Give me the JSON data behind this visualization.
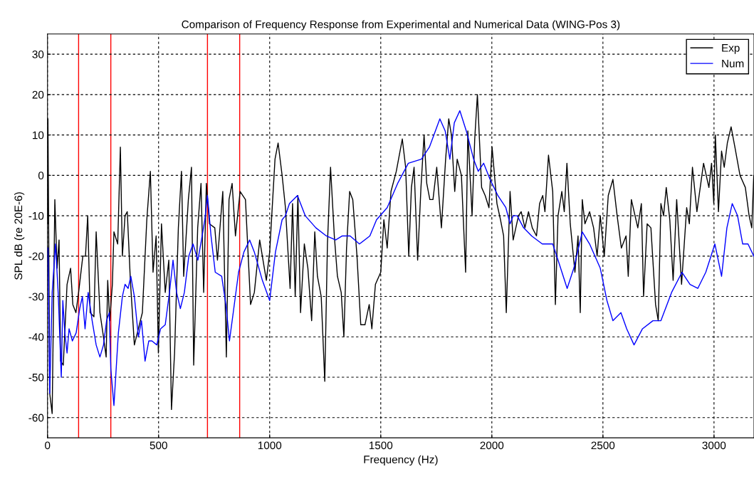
{
  "chart_data": {
    "type": "line",
    "title": "Comparison of Frequency Response from Experimental and Numerical Data (WING-Pos 3)",
    "xlabel": "Frequency (Hz)",
    "ylabel": "SPL dB (re 20E-6)",
    "xlim": [
      0,
      3180
    ],
    "ylim": [
      -65,
      35
    ],
    "xticks": [
      0,
      500,
      1000,
      1500,
      2000,
      2500,
      3000
    ],
    "yticks": [
      -60,
      -50,
      -40,
      -30,
      -20,
      -10,
      0,
      10,
      20,
      30
    ],
    "grid": true,
    "legend": "top right",
    "ref_lines": [
      {
        "axis": "x",
        "value": 140,
        "color": "#ff0000"
      },
      {
        "axis": "x",
        "value": 285,
        "color": "#ff0000"
      },
      {
        "axis": "x",
        "value": 720,
        "color": "#ff0000"
      },
      {
        "axis": "x",
        "value": 865,
        "color": "#ff0000"
      }
    ],
    "series": [
      {
        "name": "Exp",
        "color": "#000000",
        "x": [
          0,
          2,
          10,
          21,
          33,
          43,
          52,
          59,
          71,
          88,
          104,
          114,
          128,
          140,
          159,
          171,
          181,
          192,
          209,
          219,
          236,
          252,
          264,
          271,
          280,
          292,
          299,
          316,
          328,
          337,
          349,
          359,
          373,
          391,
          409,
          427,
          447,
          463,
          475,
          489,
          499,
          513,
          530,
          546,
          558,
          572,
          589,
          603,
          613,
          634,
          648,
          658,
          676,
          691,
          703,
          715,
          729,
          753,
          765,
          789,
          805,
          817,
          831,
          846,
          867,
          891,
          914,
          931,
          955,
          985,
          1000,
          1024,
          1038,
          1056,
          1071,
          1092,
          1103,
          1115,
          1127,
          1139,
          1156,
          1172,
          1189,
          1203,
          1215,
          1232,
          1248,
          1260,
          1274,
          1291,
          1305,
          1322,
          1334,
          1346,
          1360,
          1374,
          1393,
          1410,
          1429,
          1448,
          1460,
          1476,
          1500,
          1514,
          1529,
          1546,
          1570,
          1597,
          1612,
          1626,
          1638,
          1650,
          1666,
          1681,
          1695,
          1707,
          1721,
          1735,
          1752,
          1773,
          1792,
          1806,
          1818,
          1833,
          1844,
          1863,
          1882,
          1892,
          1911,
          1923,
          1935,
          1954,
          1970,
          1987,
          2001,
          2023,
          2039,
          2053,
          2065,
          2082,
          2096,
          2120,
          2132,
          2149,
          2165,
          2182,
          2201,
          2215,
          2229,
          2239,
          2255,
          2274,
          2286,
          2298,
          2315,
          2326,
          2338,
          2353,
          2374,
          2388,
          2398,
          2407,
          2419,
          2440,
          2458,
          2474,
          2488,
          2506,
          2524,
          2545,
          2564,
          2583,
          2604,
          2614,
          2628,
          2657,
          2673,
          2683,
          2699,
          2716,
          2737,
          2749,
          2761,
          2773,
          2785,
          2801,
          2816,
          2832,
          2854,
          2877,
          2889,
          2903,
          2923,
          2953,
          2977,
          2989,
          2999,
          3006,
          3020,
          3034,
          3046,
          3060,
          3077,
          3094,
          3117,
          3141,
          3158,
          3170,
          3179
        ],
        "values": [
          -12,
          14,
          -54,
          -59,
          -6,
          -23,
          -16,
          -46,
          -47,
          -27,
          -23,
          -32,
          -34,
          -29,
          -20,
          -20,
          -10,
          -34,
          -35,
          -14,
          -34,
          -40,
          -45,
          -26,
          -36,
          -27,
          -14,
          -17,
          7,
          -20,
          -10,
          -9,
          -26,
          -42,
          -38,
          -34,
          -11,
          1,
          -24,
          -15,
          -44,
          -12,
          -29,
          -21,
          -58,
          -44,
          -13,
          1,
          -25,
          -6,
          2,
          -47,
          -13,
          -2,
          -29,
          -2,
          -12,
          -13,
          -21,
          -4,
          -45,
          -6,
          -2,
          -15,
          -4,
          -6,
          -32,
          -29,
          -16,
          -26,
          -19,
          4,
          8,
          0,
          -8,
          -28,
          -7,
          -30,
          -5,
          -34,
          -17,
          -23,
          -36,
          -14,
          -25,
          -30,
          -51,
          -17,
          2,
          -15,
          -25,
          -29,
          -40,
          -18,
          -4,
          -6,
          -20,
          -37,
          -37,
          -32,
          -38,
          -27,
          -24,
          -11,
          -18,
          -4,
          1,
          9,
          2,
          -20,
          -3,
          2,
          -21,
          -3,
          10,
          -2,
          -6,
          -6,
          2,
          -13,
          4,
          14,
          10,
          -4,
          4,
          0,
          -24,
          11,
          -10,
          9,
          20,
          -3,
          -5,
          -8,
          7,
          -7,
          -11,
          -15,
          -34,
          -4,
          -16,
          -10,
          -9,
          -13,
          -9,
          -13,
          -15,
          -7,
          -5,
          -9,
          5,
          -4,
          -32,
          -10,
          -4,
          -9,
          3,
          -12,
          -24,
          -15,
          -34,
          -6,
          -12,
          -9,
          -13,
          -20,
          -10,
          -20,
          -5,
          -1,
          -10,
          -18,
          -15,
          -25,
          -6,
          -13,
          -7,
          -30,
          -12,
          -13,
          -32,
          -36,
          -7,
          -10,
          -3,
          -11,
          -26,
          -6,
          -27,
          -8,
          -12,
          2,
          -9,
          3,
          -3,
          3,
          -7,
          10,
          -9,
          6,
          2,
          8,
          12,
          7,
          0,
          -3,
          -10,
          -13,
          0
        ]
      },
      {
        "name": "Num",
        "color": "#0000ff",
        "x": [
          2,
          10,
          21,
          36,
          48,
          62,
          69,
          78,
          88,
          97,
          112,
          129,
          145,
          157,
          169,
          183,
          201,
          219,
          236,
          252,
          266,
          278,
          285,
          299,
          319,
          337,
          349,
          363,
          375,
          391,
          409,
          423,
          439,
          456,
          470,
          492,
          509,
          530,
          549,
          565,
          581,
          598,
          616,
          636,
          655,
          677,
          693,
          708,
          720,
          736,
          755,
          784,
          803,
          819,
          836,
          860,
          884,
          910,
          931,
          967,
          1000,
          1026,
          1056,
          1071,
          1089,
          1125,
          1160,
          1208,
          1255,
          1297,
          1327,
          1362,
          1404,
          1451,
          1481,
          1529,
          1576,
          1624,
          1683,
          1719,
          1766,
          1790,
          1811,
          1831,
          1856,
          1885,
          1918,
          1939,
          1963,
          1992,
          2027,
          2063,
          2082,
          2096,
          2114,
          2143,
          2179,
          2227,
          2274,
          2298,
          2339,
          2369,
          2407,
          2440,
          2488,
          2518,
          2545,
          2581,
          2607,
          2640,
          2678,
          2725,
          2761,
          2809,
          2856,
          2892,
          2927,
          2963,
          3004,
          3034,
          3058,
          3082,
          3106,
          3129,
          3153,
          3179
        ],
        "values": [
          -18,
          -54,
          -29,
          -17,
          -29,
          -50,
          -31,
          -39,
          -44,
          -38,
          -41,
          -39,
          -33,
          -30,
          -38,
          -29,
          -36,
          -42,
          -45,
          -42,
          -36,
          -34,
          -48,
          -57,
          -39,
          -30,
          -27,
          -28,
          -25,
          -30,
          -40,
          -36,
          -46,
          -41,
          -41,
          -42,
          -38,
          -37,
          -29,
          -21,
          -29,
          -33,
          -29,
          -20,
          -17,
          -21,
          -16,
          -11,
          -5,
          -15,
          -24,
          -25,
          -32,
          -41,
          -34,
          -24,
          -19,
          -16,
          -19,
          -26,
          -31,
          -19,
          -11,
          -10,
          -7,
          -5,
          -10,
          -13,
          -15,
          -16,
          -15,
          -15,
          -17,
          -15,
          -11,
          -8,
          -2,
          3,
          4,
          7,
          14,
          11,
          4,
          13,
          16,
          11,
          4,
          1,
          3,
          -1,
          -5,
          -8,
          -12,
          -10,
          -10,
          -13,
          -15,
          -17,
          -17,
          -21,
          -28,
          -23,
          -14,
          -17,
          -23,
          -31,
          -36,
          -34,
          -38,
          -42,
          -38,
          -36,
          -36,
          -29,
          -24,
          -27,
          -28,
          -24,
          -17,
          -25,
          -13,
          -7,
          -10,
          -17,
          -17,
          -20
        ]
      }
    ]
  }
}
